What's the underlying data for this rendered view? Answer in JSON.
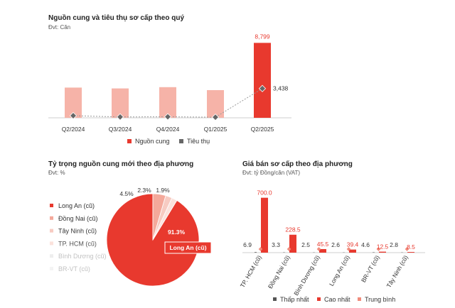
{
  "colors": {
    "supply": "#e8392e",
    "supply_light": "#f6b3a8",
    "absorption": "#666666",
    "highest": "#e8392e",
    "lowest": "#555555",
    "average": "#f08c7c",
    "pie": [
      "#e8392e",
      "#f4a99b",
      "#f7cbc2",
      "#fbe2dc",
      "#eeeeee",
      "#f4f4f4"
    ],
    "pie_legend_text": [
      "#333333",
      "#333333",
      "#333333",
      "#555555",
      "#c2c2c2",
      "#c2c2c2"
    ]
  },
  "chart_data": [
    {
      "type": "bar",
      "title": "Nguồn cung và tiêu thụ sơ cấp theo quý",
      "unit": "Đvt: Căn",
      "categories": [
        "Q2/2024",
        "Q3/2024",
        "Q4/2024",
        "Q1/2025",
        "Q2/2025"
      ],
      "series": [
        {
          "name": "Nguồn cung",
          "type": "bar",
          "values": [
            3550,
            3450,
            3600,
            3250,
            8799
          ],
          "labels": [
            "",
            "",
            "",
            "",
            "8,799"
          ]
        },
        {
          "name": "Tiêu thụ",
          "type": "line",
          "values": [
            250,
            100,
            120,
            70,
            3438
          ],
          "labels": [
            "",
            "",
            "",
            "",
            "3,438"
          ]
        }
      ],
      "ylim": [
        0,
        9500
      ],
      "legend": "bottom"
    },
    {
      "type": "pie",
      "title": "Tỷ trọng nguồn cung mới theo địa phương",
      "unit": "Đvt: %",
      "labels": [
        "Long An (cũ)",
        "Đồng Nai (cũ)",
        "Tây Ninh (cũ)",
        "TP. HCM (cũ)",
        "Bình Dương (cũ)",
        "BR-VT (cũ)"
      ],
      "values": [
        91.3,
        4.5,
        2.3,
        1.9,
        0,
        0
      ],
      "value_labels": [
        "91.3%",
        "4.5%",
        "2.3%",
        "1.9%",
        "",
        ""
      ],
      "callout": "Long An (cũ)",
      "legend": "left"
    },
    {
      "type": "bar",
      "title": "Giá bán sơ cấp theo địa phương",
      "unit": "Đvt: tỷ Đồng/căn (VAT)",
      "categories": [
        "TP. HCM (cũ)",
        "Đồng Nai (cũ)",
        "Bình Dương (cũ)",
        "Long An (cũ)",
        "BR-VT (cũ)",
        "Tây Ninh (cũ)"
      ],
      "series": [
        {
          "name": "Thấp nhất",
          "values": [
            6.9,
            3.3,
            2.5,
            2.6,
            4.6,
            2.8
          ]
        },
        {
          "name": "Cao nhất",
          "values": [
            700.0,
            228.5,
            45.5,
            39.4,
            12.5,
            8.5
          ]
        },
        {
          "name": "Trung bình",
          "values": [
            40,
            15,
            12,
            9,
            6,
            5
          ]
        }
      ],
      "low_labels": [
        "6.9",
        "3.3",
        "2.5",
        "2.6",
        "4.6",
        "2.8"
      ],
      "high_labels": [
        "700.0",
        "228.5",
        "45.5",
        "39.4",
        "12.5",
        "8.5"
      ],
      "ylim": [
        0,
        760
      ],
      "legend": "bottom"
    }
  ]
}
